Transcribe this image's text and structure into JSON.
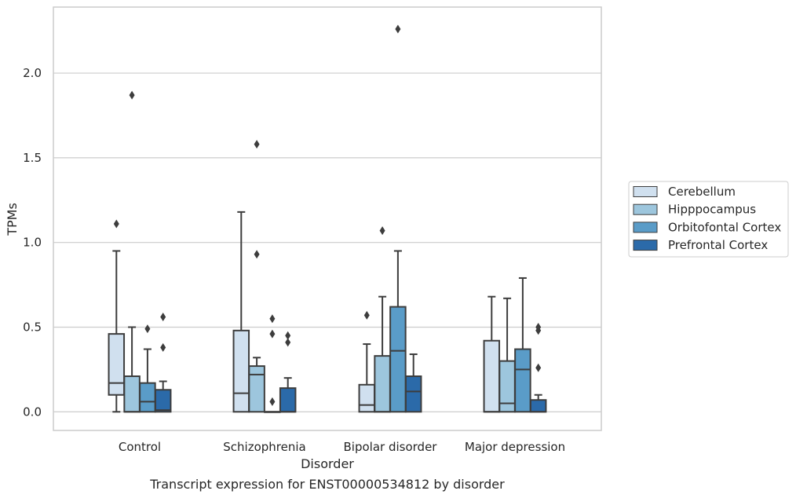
{
  "chart_data": {
    "type": "box",
    "title": "Transcript expression for ENST00000534812 by disorder",
    "xlabel": "Disorder",
    "ylabel": "TPMs",
    "ylim": [
      -0.11,
      2.39
    ],
    "yticks": [
      "0.0",
      "0.5",
      "1.0",
      "1.5",
      "2.0"
    ],
    "grid": "horizontal",
    "legend_position": "right",
    "categories": [
      "Control",
      "Schizophrenia",
      "Bipolar disorder",
      "Major depression"
    ],
    "series": [
      {
        "name": "Cerebellum",
        "color": "#d0e0ef",
        "boxes": [
          {
            "q1": 0.1,
            "median": 0.17,
            "q3": 0.46,
            "whisker_low": 0.0,
            "whisker_high": 0.95,
            "outliers": [
              1.11
            ]
          },
          {
            "q1": 0.0,
            "median": 0.11,
            "q3": 0.48,
            "whisker_low": 0.0,
            "whisker_high": 1.18,
            "outliers": []
          },
          {
            "q1": 0.0,
            "median": 0.04,
            "q3": 0.16,
            "whisker_low": 0.0,
            "whisker_high": 0.4,
            "outliers": [
              0.57
            ]
          },
          {
            "q1": 0.0,
            "median": 0.0,
            "q3": 0.42,
            "whisker_low": 0.0,
            "whisker_high": 0.68,
            "outliers": []
          }
        ]
      },
      {
        "name": "Hipppocampus",
        "color": "#9dc6dd",
        "boxes": [
          {
            "q1": 0.0,
            "median": 0.0,
            "q3": 0.21,
            "whisker_low": 0.0,
            "whisker_high": 0.5,
            "outliers": [
              1.87
            ]
          },
          {
            "q1": 0.0,
            "median": 0.22,
            "q3": 0.27,
            "whisker_low": 0.0,
            "whisker_high": 0.32,
            "outliers": [
              0.93,
              1.58
            ]
          },
          {
            "q1": 0.0,
            "median": 0.0,
            "q3": 0.33,
            "whisker_low": 0.0,
            "whisker_high": 0.68,
            "outliers": [
              1.07
            ]
          },
          {
            "q1": 0.0,
            "median": 0.05,
            "q3": 0.3,
            "whisker_low": 0.0,
            "whisker_high": 0.67,
            "outliers": []
          }
        ]
      },
      {
        "name": "Orbitofontal Cortex",
        "color": "#5a9cc8",
        "boxes": [
          {
            "q1": 0.0,
            "median": 0.06,
            "q3": 0.17,
            "whisker_low": 0.0,
            "whisker_high": 0.37,
            "outliers": [
              0.49
            ]
          },
          {
            "q1": 0.0,
            "median": 0.0,
            "q3": 0.0,
            "whisker_low": 0.0,
            "whisker_high": 0.0,
            "outliers": [
              0.06,
              0.46,
              0.55
            ]
          },
          {
            "q1": 0.0,
            "median": 0.36,
            "q3": 0.62,
            "whisker_low": 0.0,
            "whisker_high": 0.95,
            "outliers": [
              2.26
            ]
          },
          {
            "q1": 0.0,
            "median": 0.25,
            "q3": 0.37,
            "whisker_low": 0.0,
            "whisker_high": 0.79,
            "outliers": []
          }
        ]
      },
      {
        "name": "Prefrontal Cortex",
        "color": "#2b6aa9",
        "boxes": [
          {
            "q1": 0.0,
            "median": 0.01,
            "q3": 0.13,
            "whisker_low": 0.0,
            "whisker_high": 0.18,
            "outliers": [
              0.38,
              0.56
            ]
          },
          {
            "q1": 0.0,
            "median": 0.0,
            "q3": 0.14,
            "whisker_low": 0.0,
            "whisker_high": 0.2,
            "outliers": [
              0.41,
              0.45
            ]
          },
          {
            "q1": 0.0,
            "median": 0.12,
            "q3": 0.21,
            "whisker_low": 0.0,
            "whisker_high": 0.34,
            "outliers": []
          },
          {
            "q1": 0.0,
            "median": 0.0,
            "q3": 0.07,
            "whisker_low": 0.0,
            "whisker_high": 0.1,
            "outliers": [
              0.26,
              0.48,
              0.5
            ]
          }
        ]
      }
    ]
  }
}
